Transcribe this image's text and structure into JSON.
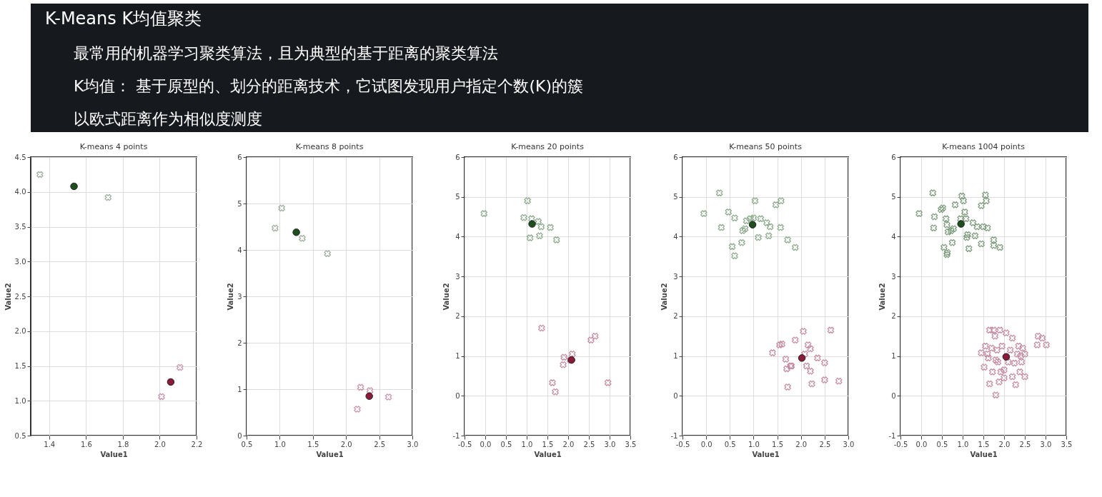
{
  "chart_data": [
    {
      "type": "other",
      "title": "K-Means K均值聚类",
      "annotations": [
        "最常用的机器学习聚类算法，且为典型的基于距离的聚类算法",
        "K均值： 基于原型的、划分的距离技术，它试图发现用户指定个数(K)的簇",
        "以欧式距离作为相似度测度"
      ]
    },
    {
      "type": "scatter",
      "title": "K-means  4 points",
      "xlabel": "Value1",
      "ylabel": "Value2",
      "xlim": [
        1.3,
        2.2
      ],
      "ylim": [
        0.5,
        4.5
      ],
      "xticks": [
        1.4,
        1.6,
        1.8,
        {
          "value": 2,
          "label": "2.0"
        },
        2.2
      ],
      "yticks": [
        0.5,
        {
          "value": 1,
          "label": "1.0"
        },
        1.5,
        {
          "value": 2,
          "label": "2.0"
        },
        2.5,
        {
          "value": 3,
          "label": "3.0"
        },
        3.5,
        {
          "value": 4,
          "label": "4.0"
        },
        4.5
      ],
      "grid": true,
      "series": [
        {
          "color": "#9aaa9a",
          "marker": "cross",
          "x": [
            1.35,
            1.72
          ],
          "values": [
            4.25,
            3.92
          ]
        },
        {
          "color": "#c890a8",
          "marker": "cross",
          "x": [
            2.01,
            2.11
          ],
          "values": [
            1.06,
            1.48
          ]
        },
        {
          "color": "#1e4d1e",
          "marker": "circle",
          "x": [
            1.535
          ],
          "values": [
            4.08
          ]
        },
        {
          "color": "#8b1a3a",
          "marker": "circle",
          "x": [
            2.06
          ],
          "values": [
            1.27
          ]
        }
      ]
    },
    {
      "type": "scatter",
      "title": "K-means  8 points",
      "xlabel": "Value1",
      "ylabel": "Value2",
      "xlim": [
        0.5,
        3.0
      ],
      "ylim": [
        0,
        6
      ],
      "xticks": [
        0.5,
        {
          "value": 1,
          "label": "1.0"
        },
        1.5,
        {
          "value": 2,
          "label": "2.0"
        },
        2.5,
        {
          "value": 3,
          "label": "3.0"
        }
      ],
      "yticks": [
        0,
        1,
        2,
        3,
        4,
        5,
        6
      ],
      "grid": true,
      "series": [
        {
          "color": "#9aaa9a",
          "marker": "cross",
          "x": [
            0.93,
            1.03,
            1.34,
            1.72
          ],
          "values": [
            4.47,
            4.9,
            4.25,
            3.92
          ]
        },
        {
          "color": "#c890a8",
          "marker": "cross",
          "x": [
            2.17,
            2.22,
            2.36,
            2.64
          ],
          "values": [
            0.57,
            1.04,
            0.97,
            0.83
          ]
        },
        {
          "color": "#1e4d1e",
          "marker": "circle",
          "x": [
            1.25
          ],
          "values": [
            4.38
          ]
        },
        {
          "color": "#8b1a3a",
          "marker": "circle",
          "x": [
            2.35
          ],
          "values": [
            0.85
          ]
        }
      ]
    },
    {
      "type": "scatter",
      "title": "K-means  20 points",
      "xlabel": "Value1",
      "ylabel": "Value2",
      "xlim": [
        -0.5,
        3.5
      ],
      "ylim": [
        -1,
        6
      ],
      "xticks": [
        -0.5,
        {
          "value": 0,
          "label": "0.0"
        },
        0.5,
        {
          "value": 1,
          "label": "1.0"
        },
        1.5,
        {
          "value": 2,
          "label": "2.0"
        },
        2.5,
        {
          "value": 3,
          "label": "3.0"
        },
        3.5
      ],
      "yticks": [
        -1,
        0,
        1,
        2,
        3,
        4,
        5,
        6
      ],
      "grid": true,
      "series": [
        {
          "color": "#8aa88a",
          "marker": "cross",
          "x": [
            -0.03,
            0.93,
            1.02,
            1.12,
            1.28,
            1.35,
            1.57,
            1.08,
            1.31,
            1.72
          ],
          "values": [
            4.58,
            4.48,
            4.9,
            4.45,
            4.38,
            4.25,
            4.23,
            3.97,
            4.02,
            3.92
          ]
        },
        {
          "color": "#c48aa0",
          "marker": "cross",
          "x": [
            1.36,
            1.9,
            1.88,
            2.1,
            1.62,
            1.69,
            2.55,
            2.65,
            2.96,
            2.05
          ],
          "values": [
            1.7,
            0.97,
            0.78,
            1.05,
            0.33,
            0.1,
            1.4,
            1.5,
            0.33,
            0.9
          ]
        },
        {
          "color": "#1e4d1e",
          "marker": "circle",
          "x": [
            1.13
          ],
          "values": [
            4.32
          ]
        },
        {
          "color": "#8b1a3a",
          "marker": "circle",
          "x": [
            2.08
          ],
          "values": [
            0.9
          ]
        }
      ]
    },
    {
      "type": "scatter",
      "title": "K-means  50 points",
      "xlabel": "Value1",
      "ylabel": "Value2",
      "xlim": [
        -0.5,
        3.0
      ],
      "ylim": [
        -1,
        6
      ],
      "xticks": [
        -0.5,
        {
          "value": 0,
          "label": "0.0"
        },
        0.5,
        {
          "value": 1,
          "label": "1.0"
        },
        1.5,
        {
          "value": 2,
          "label": "2.0"
        },
        2.5,
        {
          "value": 3,
          "label": "3.0"
        }
      ],
      "yticks": [
        -1,
        0,
        1,
        2,
        3,
        4,
        5,
        6
      ],
      "grid": true,
      "series": [
        {
          "color": "#8aa88a",
          "marker": "cross",
          "x": [
            -0.05,
            0.28,
            0.32,
            0.47,
            0.6,
            0.55,
            0.6,
            0.75,
            0.77,
            0.82,
            0.85,
            0.93,
            1.0,
            1.03,
            1.1,
            1.15,
            1.28,
            1.32,
            1.35,
            1.47,
            1.58,
            1.57,
            1.72,
            1.88
          ],
          "values": [
            4.58,
            5.1,
            4.23,
            4.62,
            4.47,
            3.75,
            3.52,
            3.85,
            4.15,
            4.2,
            4.4,
            4.45,
            4.47,
            4.9,
            3.98,
            4.45,
            4.35,
            4.02,
            4.25,
            4.8,
            4.9,
            4.23,
            3.92,
            3.73
          ]
        },
        {
          "color": "#c48aa0",
          "marker": "cross",
          "x": [
            1.4,
            1.55,
            1.6,
            1.68,
            1.7,
            1.72,
            1.78,
            1.8,
            1.88,
            1.93,
            2.05,
            2.08,
            2.12,
            2.15,
            2.2,
            2.2,
            2.23,
            2.35,
            2.5,
            2.5,
            2.63,
            2.8
          ],
          "values": [
            1.08,
            1.28,
            1.3,
            0.92,
            0.68,
            0.22,
            0.75,
            0.75,
            1.4,
            null,
            1.62,
            1.05,
            0.75,
            1.28,
            1.18,
            0.62,
            0.3,
            0.95,
            0.83,
            0.4,
            1.65,
            0.37
          ]
        },
        {
          "color": "#1e4d1e",
          "marker": "circle",
          "x": [
            0.98
          ],
          "values": [
            4.3
          ]
        },
        {
          "color": "#8b1a3a",
          "marker": "circle",
          "x": [
            2.02
          ],
          "values": [
            0.95
          ]
        }
      ]
    },
    {
      "type": "scatter",
      "title": "K-means 1004 points",
      "xlabel": "Value1",
      "ylabel": "Value2",
      "xlim": [
        -0.5,
        3.5
      ],
      "ylim": [
        -1,
        6
      ],
      "xticks": [
        -0.5,
        {
          "value": 0,
          "label": "0.0"
        },
        0.5,
        {
          "value": 1,
          "label": "1.0"
        },
        1.5,
        {
          "value": 2,
          "label": "2.0"
        },
        2.5,
        {
          "value": 3,
          "label": "3.0"
        },
        3.5
      ],
      "yticks": [
        -1,
        0,
        1,
        2,
        3,
        4,
        5,
        6
      ],
      "grid": true,
      "series": [
        {
          "color": "#7a9a7a",
          "marker": "cross",
          "x": [
            -0.05,
            0.28,
            0.32,
            0.3,
            0.48,
            0.52,
            0.6,
            0.62,
            0.65,
            0.72,
            0.78,
            0.55,
            0.62,
            0.63,
            0.75,
            0.82,
            0.95,
            0.98,
            1.02,
            1.05,
            1.08,
            1.1,
            1.15,
            1.12,
            1.25,
            1.3,
            1.35,
            1.45,
            1.45,
            1.5,
            1.55,
            1.57,
            1.6,
            1.75,
            1.75,
            1.9
          ],
          "values": [
            4.58,
            5.1,
            4.5,
            4.22,
            4.68,
            4.72,
            4.45,
            4.3,
            4.12,
            4.15,
            4.2,
            3.73,
            3.55,
            3.6,
            3.85,
            4.8,
            4.45,
            5.02,
            4.9,
            4.62,
            4.45,
            3.98,
            3.7,
            4.05,
            4.35,
            4.02,
            4.25,
            3.82,
            4.78,
            4.25,
            5.05,
            4.9,
            4.22,
            3.92,
            3.78,
            3.73
          ]
        },
        {
          "color": "#c48aa0",
          "marker": "cross",
          "x": [
            1.45,
            1.52,
            1.55,
            1.6,
            1.62,
            1.65,
            1.65,
            1.7,
            1.72,
            1.75,
            1.78,
            1.8,
            1.8,
            1.83,
            1.85,
            1.9,
            1.92,
            1.95,
            1.88,
            2.0,
            2.0,
            2.05,
            2.1,
            2.15,
            2.2,
            2.2,
            2.25,
            2.28,
            2.32,
            2.35,
            2.38,
            2.4,
            2.42,
            2.45,
            2.5,
            2.5,
            2.8,
            2.82,
            2.92,
            3.02
          ],
          "values": [
            1.08,
            0.72,
            1.25,
            1.05,
            0.95,
            1.65,
            0.3,
            1.2,
            0.6,
            1.65,
            1.5,
            0.9,
            0.02,
            1.15,
            0.85,
            1.65,
            0.6,
            1.25,
            0.35,
            0.45,
            0.65,
            1.58,
            0.85,
            1.15,
            1.45,
            0.48,
            0.82,
            0.28,
            1.05,
            1.25,
            0.6,
            1.0,
            0.85,
            1.2,
            1.05,
            0.48,
            1.28,
            1.5,
            1.45,
            1.28
          ]
        },
        {
          "color": "#1e4d1e",
          "marker": "circle",
          "x": [
            0.96
          ],
          "values": [
            4.32
          ]
        },
        {
          "color": "#8b1a3a",
          "marker": "circle",
          "x": [
            2.05
          ],
          "values": [
            0.98
          ]
        }
      ]
    }
  ]
}
